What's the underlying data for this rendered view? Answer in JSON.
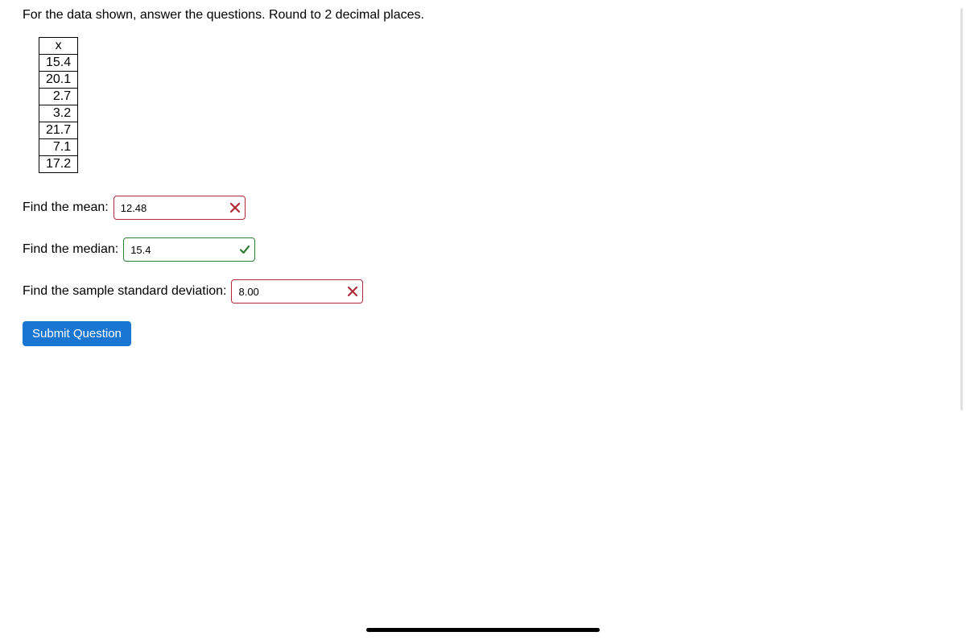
{
  "instruction": "For the data shown, answer the questions. Round to 2 decimal places.",
  "table": {
    "header": "x",
    "values": [
      "15.4",
      "20.1",
      "2.7",
      "3.2",
      "21.7",
      "7.1",
      "17.2"
    ]
  },
  "questions": {
    "mean": {
      "label": "Find the mean:",
      "value": "12.48",
      "status": "incorrect"
    },
    "median": {
      "label": "Find the median:",
      "value": "15.4",
      "status": "correct"
    },
    "stddev": {
      "label": "Find the sample standard deviation:",
      "value": "8.00",
      "status": "incorrect"
    }
  },
  "submit_label": "Submit Question",
  "colors": {
    "incorrect": "#b02a37",
    "correct": "#2e7d32",
    "button_bg": "#1976d2"
  }
}
